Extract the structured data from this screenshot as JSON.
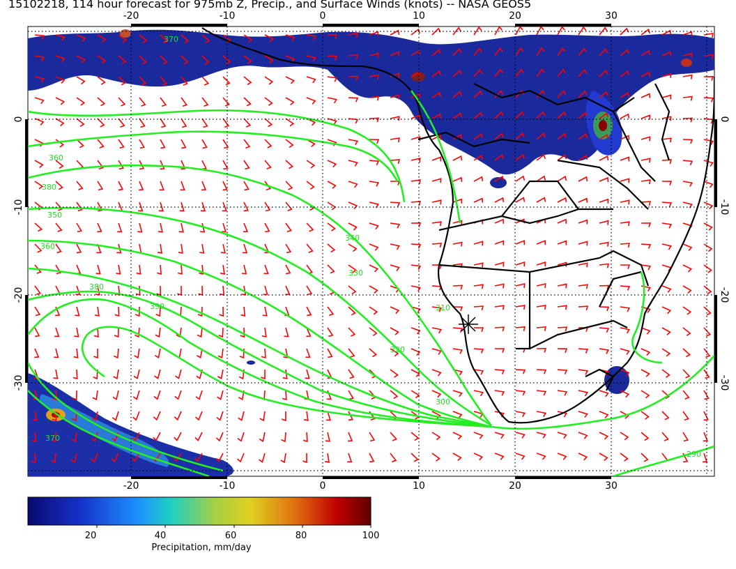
{
  "title": "15102218, 114 hour forecast for 975mb Z, Precip., and Surface Winds (knots) -- NASA GEOS5",
  "map": {
    "lon_ticks": [
      "-20",
      "-10",
      "0",
      "10",
      "20",
      "30"
    ],
    "lat_ticks": [
      "0",
      "-10",
      "-20",
      "-30"
    ],
    "contour_labels": [
      "370",
      "350",
      "360",
      "380",
      "390",
      "340",
      "330",
      "310",
      "320",
      "300",
      "290",
      "370",
      "360",
      "380"
    ],
    "marker": "star-marker",
    "colors": {
      "contour": "#22ee22",
      "wind_barbs": "#ff0000",
      "coastline": "#000000",
      "precip_low": "#1a1aa0",
      "precip_high": "#8b0000"
    }
  },
  "colorbar": {
    "ticks": [
      "20",
      "40",
      "60",
      "80",
      "100"
    ],
    "label": "Precipitation, mm/day",
    "range": [
      0,
      100
    ]
  }
}
